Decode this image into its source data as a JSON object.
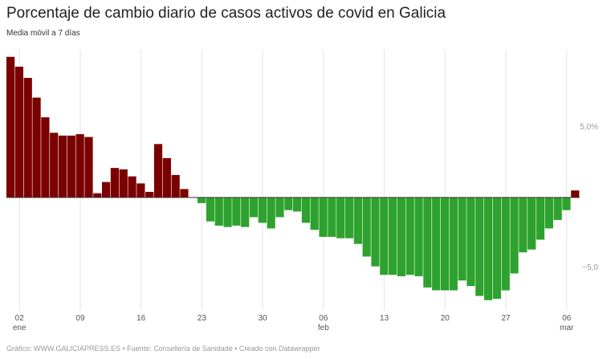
{
  "chart_data": {
    "type": "bar",
    "title": "Porcentaje de cambio diario de casos activos de covid en Galicia",
    "subtitle": "Media móvil a 7 días",
    "footer": "Gráfico: WWW.GALICIAPRESS.ES • Fuente: Consellería de Sanidade • Creado con Datawrapper",
    "categories": [
      null,
      "02\nene",
      null,
      null,
      null,
      null,
      null,
      null,
      "09",
      null,
      null,
      null,
      null,
      null,
      null,
      "16",
      null,
      null,
      null,
      null,
      null,
      null,
      "23",
      null,
      null,
      null,
      null,
      null,
      null,
      "30",
      null,
      null,
      null,
      null,
      null,
      null,
      "06\nfeb",
      null,
      null,
      null,
      null,
      null,
      null,
      "13",
      null,
      null,
      null,
      null,
      null,
      null,
      "20",
      null,
      null,
      null,
      null,
      null,
      null,
      "27",
      null,
      null,
      null,
      null,
      null,
      null,
      "06\nmar",
      null
    ],
    "values": [
      10.0,
      9.3,
      8.5,
      7.1,
      5.7,
      4.6,
      4.4,
      4.4,
      4.5,
      4.3,
      0.3,
      1.1,
      2.1,
      2.0,
      1.5,
      1.0,
      0.4,
      3.8,
      2.8,
      1.6,
      0.6,
      0,
      -0.4,
      -1.7,
      -2.0,
      -2.1,
      -2.0,
      -2.1,
      -1.4,
      -1.8,
      -2.2,
      -1.4,
      -0.9,
      -1.0,
      -1.8,
      -2.3,
      -2.8,
      -2.8,
      -2.9,
      -2.9,
      -3.3,
      -4.2,
      -4.9,
      -5.5,
      -5.5,
      -5.6,
      -5.5,
      -5.6,
      -6.4,
      -6.6,
      -6.6,
      -6.6,
      -5.9,
      -6.3,
      -7.0,
      -7.3,
      -7.2,
      -6.6,
      -5.4,
      -3.9,
      -3.7,
      -3.0,
      -2.2,
      -1.6,
      -0.9,
      0.5
    ],
    "colors": {
      "positive": "#7b0000",
      "negative": "#2ea22e"
    },
    "ylim": [
      -8,
      10.5
    ],
    "yticks": [
      {
        "value": 5,
        "label": "5,0%"
      },
      {
        "value": -5,
        "label": "−5,0"
      }
    ],
    "grid": true
  }
}
